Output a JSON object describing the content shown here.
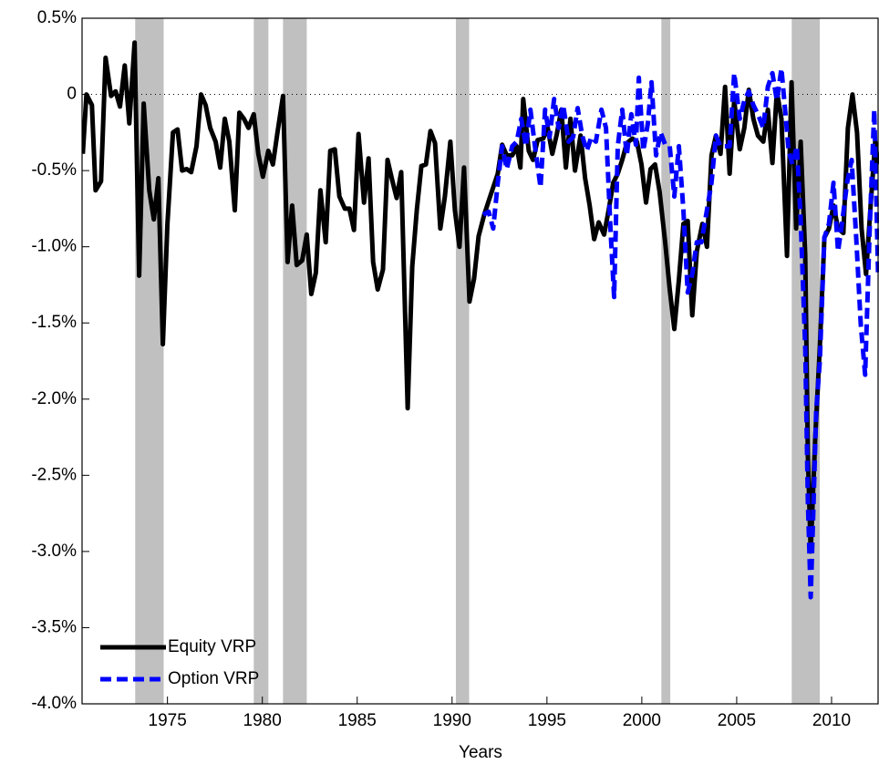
{
  "chart_data": {
    "type": "line",
    "xlabel": "Years",
    "xlim": [
      1970.5,
      2012.5
    ],
    "xticks": [
      1975,
      1980,
      1985,
      1990,
      1995,
      2000,
      2005,
      2010
    ],
    "ylim": [
      -4.0,
      0.5
    ],
    "yticks": [
      {
        "value": 0.5,
        "label": "0.5%"
      },
      0,
      {
        "value": -0.5,
        "label": "-0.5%"
      },
      {
        "value": -1.0,
        "label": "-1.0%"
      },
      {
        "value": -1.5,
        "label": "-1.5%"
      },
      {
        "value": -2.0,
        "label": "-2.0%"
      },
      {
        "value": -2.5,
        "label": "-2.5%"
      },
      {
        "value": -3.0,
        "label": "-3.0%"
      },
      {
        "value": -3.5,
        "label": "-3.5%"
      },
      {
        "value": -4.0,
        "label": "-4.0%"
      }
    ],
    "reference_line": 0,
    "shaded_regions": [
      [
        1973.3,
        1974.8
      ],
      [
        1979.55,
        1980.32
      ],
      [
        1981.09,
        1982.34
      ],
      [
        1990.2,
        1990.9
      ],
      [
        2001.03,
        2001.5
      ],
      [
        2007.9,
        2009.38
      ]
    ],
    "shade_color": "#c0c0c0",
    "legend": "lower left",
    "series": [
      {
        "name": "Equity VRP",
        "color": "#000000",
        "dash": "solid",
        "x": [
          1970.54,
          1970.73,
          1971.02,
          1971.21,
          1971.5,
          1971.74,
          1972.03,
          1972.27,
          1972.5,
          1972.75,
          1972.99,
          1973.27,
          1973.51,
          1973.75,
          1974.04,
          1974.28,
          1974.52,
          1974.76,
          1975,
          1975.29,
          1975.53,
          1975.77,
          1976.01,
          1976.25,
          1976.53,
          1976.77,
          1977.01,
          1977.25,
          1977.54,
          1977.78,
          1978.02,
          1978.26,
          1978.55,
          1978.79,
          1979.03,
          1979.27,
          1979.55,
          1979.79,
          1980.03,
          1980.32,
          1980.56,
          1980.8,
          1981.09,
          1981.33,
          1981.57,
          1981.81,
          1982.1,
          1982.34,
          1982.58,
          1982.82,
          1983.06,
          1983.34,
          1983.58,
          1983.82,
          1984.06,
          1984.35,
          1984.59,
          1984.83,
          1985.07,
          1985.36,
          1985.6,
          1985.84,
          1986.08,
          1986.36,
          1986.6,
          1986.84,
          1987.08,
          1987.32,
          1987.66,
          1987.9,
          1988.14,
          1988.38,
          1988.62,
          1988.86,
          1989.1,
          1989.38,
          1989.62,
          1989.91,
          1990.15,
          1990.39,
          1990.63,
          1990.92,
          1991.16,
          1991.4,
          1991.69,
          1991.93,
          1992.17,
          1992.41,
          1992.64,
          1992.88,
          1993.17,
          1993.41,
          1993.6,
          1993.75,
          1994.04,
          1994.27,
          1994.51,
          1994.8,
          1995.04,
          1995.28,
          1995.52,
          1995.76,
          1996,
          1996.24,
          1996.48,
          1996.77,
          1997.01,
          1997.25,
          1997.49,
          1997.73,
          1998.01,
          1998.25,
          1998.49,
          1998.73,
          1998.97,
          1999.21,
          1999.5,
          1999.74,
          1999.98,
          2000.22,
          2000.46,
          2000.7,
          2000.94,
          2001.23,
          2001.47,
          2001.71,
          2001.95,
          2002.19,
          2002.42,
          2002.66,
          2002.9,
          2003.19,
          2003.43,
          2003.67,
          2003.91,
          2004.15,
          2004.39,
          2004.63,
          2004.87,
          2005.16,
          2005.4,
          2005.64,
          2005.88,
          2006.12,
          2006.4,
          2006.64,
          2006.88,
          2007.12,
          2007.36,
          2007.65,
          2007.89,
          2008.13,
          2008.37,
          2008.61,
          2008.75,
          2008.9,
          2009.14,
          2009.38,
          2009.62,
          2009.86,
          2010.1,
          2010.34,
          2010.62,
          2010.86,
          2011.1,
          2011.34,
          2011.58,
          2011.82,
          2012.06,
          2012.3,
          2012.45
        ],
        "values": [
          -0.39,
          0,
          -0.07,
          -0.63,
          -0.57,
          0.24,
          -0.01,
          0.02,
          -0.08,
          0.19,
          -0.19,
          0.34,
          -1.19,
          -0.06,
          -0.63,
          -0.82,
          -0.55,
          -1.64,
          -0.85,
          -0.25,
          -0.23,
          -0.5,
          -0.49,
          -0.51,
          -0.34,
          0,
          -0.07,
          -0.22,
          -0.31,
          -0.48,
          -0.16,
          -0.31,
          -0.76,
          -0.12,
          -0.16,
          -0.22,
          -0.13,
          -0.39,
          -0.54,
          -0.37,
          -0.46,
          -0.25,
          -0.01,
          -1.1,
          -0.73,
          -1.12,
          -1.09,
          -0.92,
          -1.31,
          -1.17,
          -0.63,
          -0.97,
          -0.37,
          -0.36,
          -0.67,
          -0.75,
          -0.75,
          -0.89,
          -0.26,
          -0.71,
          -0.42,
          -1.1,
          -1.28,
          -1.15,
          -0.43,
          -0.56,
          -0.68,
          -0.51,
          -2.06,
          -1.13,
          -0.76,
          -0.47,
          -0.46,
          -0.24,
          -0.32,
          -0.88,
          -0.67,
          -0.31,
          -0.76,
          -1,
          -0.48,
          -1.36,
          -1.21,
          -0.93,
          -0.79,
          -0.7,
          -0.61,
          -0.52,
          -0.33,
          -0.4,
          -0.4,
          -0.34,
          -0.48,
          -0.03,
          -0.37,
          -0.43,
          -0.3,
          -0.29,
          -0.22,
          -0.39,
          -0.26,
          -0.1,
          -0.48,
          -0.16,
          -0.5,
          -0.27,
          -0.55,
          -0.73,
          -0.95,
          -0.84,
          -0.92,
          -0.76,
          -0.58,
          -0.52,
          -0.43,
          -0.32,
          -0.29,
          -0.31,
          -0.46,
          -0.71,
          -0.49,
          -0.46,
          -0.64,
          -0.97,
          -1.28,
          -1.54,
          -1.22,
          -0.85,
          -0.83,
          -1.45,
          -1.03,
          -0.85,
          -1,
          -0.4,
          -0.27,
          -0.39,
          0.05,
          -0.52,
          -0.04,
          -0.36,
          -0.22,
          0.03,
          -0.16,
          -0.27,
          -0.31,
          -0.1,
          -0.45,
          0.02,
          -0.16,
          -1.06,
          0.08,
          -0.88,
          -0.31,
          -1.06,
          -2.37,
          -3.0,
          -2.25,
          -1.66,
          -0.94,
          -0.88,
          -0.73,
          -0.88,
          -0.91,
          -0.22,
          0,
          -0.25,
          -0.88,
          -1.18,
          -0.73,
          -0.31,
          -0.46
        ]
      },
      {
        "name": "Option VRP",
        "color": "#0000ff",
        "dash": "dashed",
        "x": [
          1991.64,
          1991.93,
          1992.17,
          1992.41,
          1992.64,
          1992.88,
          1993.17,
          1993.41,
          1993.65,
          1993.89,
          1994.13,
          1994.37,
          1994.66,
          1994.9,
          1995.14,
          1995.38,
          1995.62,
          1995.86,
          1996.14,
          1996.38,
          1996.62,
          1996.86,
          1997.1,
          1997.34,
          1997.58,
          1997.87,
          1998.11,
          1998.35,
          1998.54,
          1998.73,
          1998.97,
          1999.21,
          1999.45,
          1999.69,
          1999.84,
          2000.08,
          2000.32,
          2000.51,
          2000.75,
          2000.99,
          2001.23,
          2001.47,
          2001.71,
          2001.95,
          2002.19,
          2002.42,
          2002.66,
          2002.9,
          2003.14,
          2003.43,
          2003.67,
          2003.91,
          2004.15,
          2004.39,
          2004.63,
          2004.87,
          2005.16,
          2005.4,
          2005.64,
          2005.88,
          2006.12,
          2006.4,
          2006.64,
          2006.88,
          2007.12,
          2007.36,
          2007.55,
          2007.74,
          2007.94,
          2008.17,
          2008.37,
          2008.61,
          2008.75,
          2008.9,
          2009.04,
          2009.19,
          2009.38,
          2009.62,
          2009.86,
          2010.1,
          2010.34,
          2010.58,
          2010.82,
          2011.06,
          2011.3,
          2011.54,
          2011.77,
          2012.01,
          2012.25,
          2012.45
        ],
        "values": [
          -0.79,
          -0.77,
          -0.88,
          -0.58,
          -0.34,
          -0.49,
          -0.34,
          -0.31,
          -0.16,
          -0.34,
          -0.1,
          -0.34,
          -0.61,
          -0.1,
          -0.28,
          -0.03,
          -0.22,
          -0.07,
          -0.31,
          -0.28,
          -0.09,
          -0.27,
          -0.37,
          -0.28,
          -0.31,
          -0.1,
          -0.22,
          -0.88,
          -1.33,
          -0.34,
          -0.1,
          -0.4,
          -0.13,
          -0.33,
          0.11,
          -0.37,
          -0.19,
          0.08,
          -0.4,
          -0.25,
          -0.33,
          -0.34,
          -0.67,
          -0.34,
          -0.76,
          -1.3,
          -1.18,
          -0.97,
          -0.97,
          -0.76,
          -0.58,
          -0.27,
          -0.34,
          -0.34,
          -0.34,
          0.14,
          -0.16,
          -0.04,
          0.02,
          -0.07,
          -0.13,
          -0.22,
          0.05,
          0.14,
          -0.04,
          0.17,
          -0.1,
          -0.37,
          -0.46,
          -0.34,
          -0.82,
          -1.66,
          -2.67,
          -3.3,
          -2.73,
          -2.08,
          -1.75,
          -0.94,
          -0.85,
          -0.58,
          -1.03,
          -0.82,
          -0.58,
          -0.43,
          -0.94,
          -1.51,
          -1.84,
          -0.88,
          -0.1,
          -1.18
        ]
      }
    ]
  }
}
